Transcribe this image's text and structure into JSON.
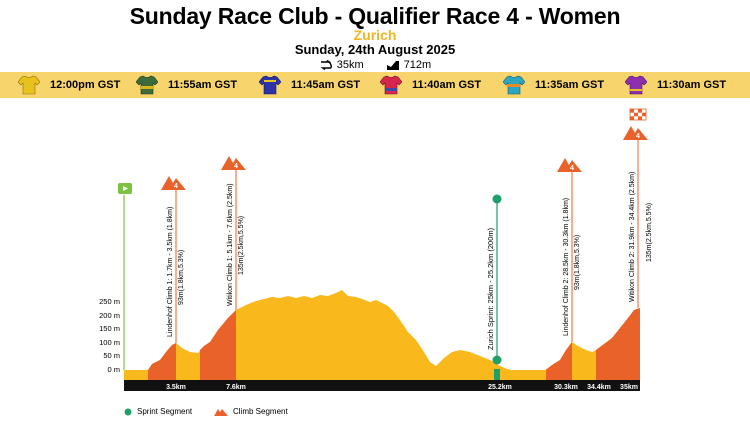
{
  "header": {
    "title": "Sunday Race Club - Qualifier Race 4 - Women",
    "location": "Zurich",
    "date": "Sunday, 24th August 2025",
    "distance": "35km",
    "elevation": "712m"
  },
  "jerseys": [
    {
      "time": "12:00pm GST",
      "color": "#e8c21c",
      "accent": "#e8c21c",
      "icon": "jersey-yellow-icon"
    },
    {
      "time": "11:55am GST",
      "color": "#3d6b3a",
      "accent": "#d9b518",
      "icon": "jersey-green-icon"
    },
    {
      "time": "11:45am GST",
      "color": "#2c33a8",
      "accent": "#e8c21c",
      "icon": "jersey-blue-icon"
    },
    {
      "time": "11:40am GST",
      "color": "#d7264e",
      "accent": "#3b4aa8",
      "icon": "jersey-red-icon"
    },
    {
      "time": "11:35am GST",
      "color": "#2fa6c0",
      "accent": "#e38a2a",
      "icon": "jersey-teal-icon"
    },
    {
      "time": "11:30am GST",
      "color": "#8e2fb0",
      "accent": "#e8c21c",
      "icon": "jersey-purple-icon"
    }
  ],
  "yaxis": [
    "250 m",
    "200 m",
    "150 m",
    "100 m",
    "50 m",
    "0 m"
  ],
  "km_markers": [
    "3.5km",
    "7.6km",
    "25.2km",
    "30.3km",
    "34.4km",
    "35km"
  ],
  "climbs": [
    {
      "name": "Lindenhof Climb 1: 1.7km - 3.5km (1.8km)",
      "stats": "93m(1.8km,5.3%)",
      "category": "4"
    },
    {
      "name": "Witikon Climb 1: 5.1km - 7.6km (2.5km)",
      "stats": "135m(2.5km,5.5%)",
      "category": "4"
    },
    {
      "name": "Lindenhof Climb 2: 28.5km - 30.3km (1.8km)",
      "stats": "93m(1.8km,5.3%)",
      "category": "4"
    },
    {
      "name": "Witikon Climb 2: 31.9km - 34.4km (2.5km)",
      "stats": "135m(2.5km,5.5%)",
      "category": "4"
    }
  ],
  "sprint": {
    "name": "Zurich Sprint: 25km - 25.2km (200m)"
  },
  "legend": {
    "sprint": "Sprint Segment",
    "climb": "Climb Segment"
  },
  "colors": {
    "terrain": "#f9b91c",
    "climb": "#e8622a",
    "sprint": "#1fa06a",
    "jersey_bar": "#f8d56c",
    "start": "#7dc142"
  }
}
